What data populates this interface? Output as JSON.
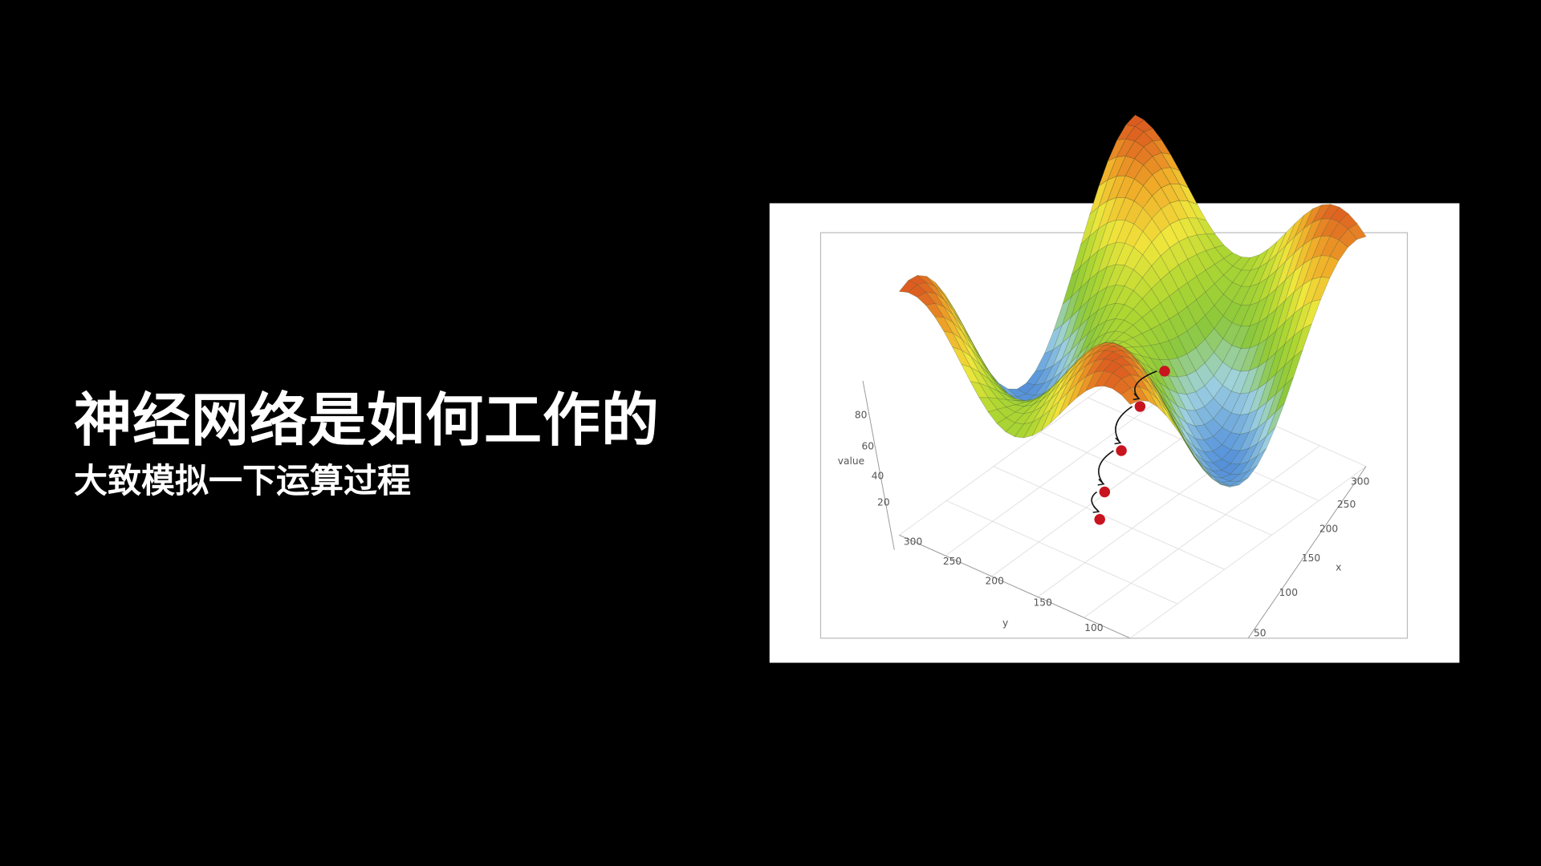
{
  "header": {
    "title": "神经网络是如何工作的",
    "subtitle": "大致模拟一下运算过程"
  },
  "plot": {
    "z_label": "value",
    "z_ticks": [
      "80",
      "60",
      "40",
      "20"
    ],
    "y_label": "y",
    "y_ticks": [
      "300",
      "250",
      "200",
      "150",
      "100"
    ],
    "x_label": "x",
    "x_ticks": [
      "300",
      "250",
      "200",
      "150",
      "100",
      "50"
    ]
  }
}
